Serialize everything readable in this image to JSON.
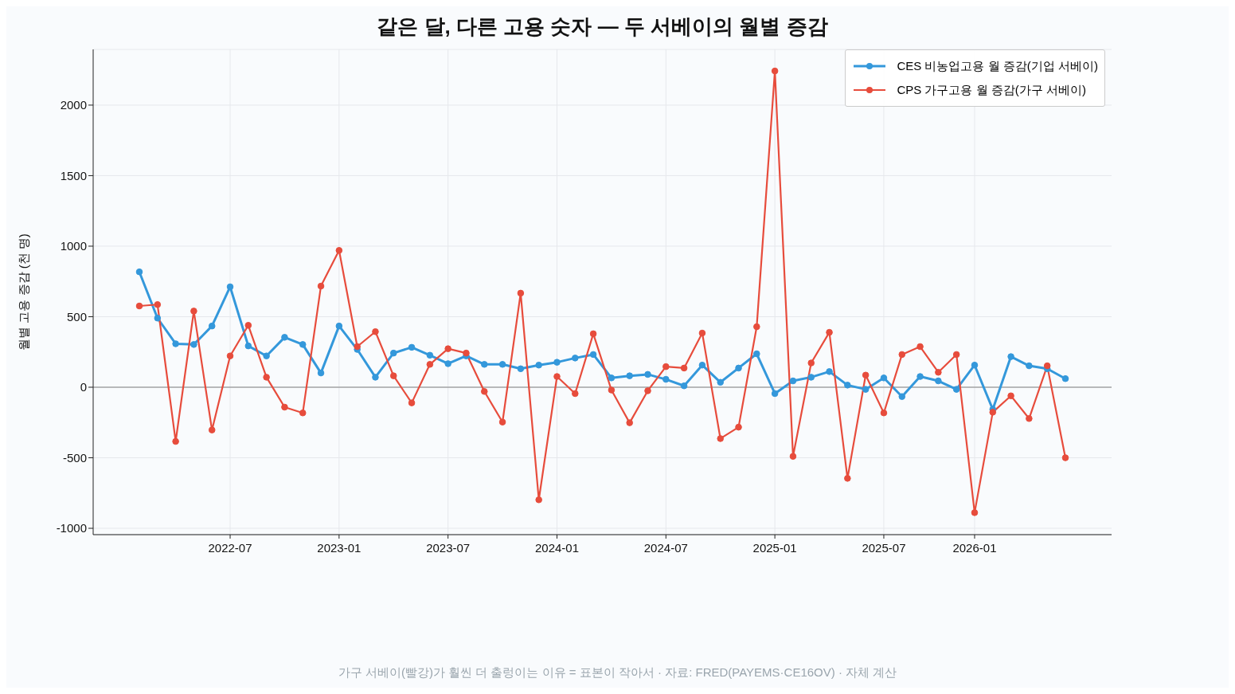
{
  "chart_data": {
    "type": "line",
    "title": "같은 달, 다른 고용 숫자 — 두 서베이의 월별 증감",
    "ylabel": "월별 고용 증감 (천 명)",
    "annotations": [
      "가구 서베이(빨강)가 훨씬 더 출렁이는 이유 = 표본이 작아서 · 자료: FRED(PAYEMS·CE16OV) · 자체 계산"
    ],
    "categories": [
      null,
      null,
      null,
      null,
      null,
      "2022-07",
      null,
      null,
      null,
      null,
      null,
      "2023-01",
      null,
      null,
      null,
      null,
      null,
      "2023-07",
      null,
      null,
      null,
      null,
      null,
      "2024-01",
      null,
      null,
      null,
      null,
      null,
      "2024-07",
      null,
      null,
      null,
      null,
      null,
      "2025-01",
      null,
      null,
      null,
      null,
      null,
      "2025-07",
      null,
      null,
      null,
      null,
      "2026-01",
      null,
      null,
      null,
      null,
      null
    ],
    "series": [
      {
        "name": "CES 비농업고용 월 증감(기업 서베이)",
        "color": "#3498db",
        "values": [
          818,
          490,
          308,
          303,
          434,
          712,
          293,
          222,
          354,
          303,
          101,
          434,
          268,
          71,
          242,
          283,
          227,
          167,
          222,
          162,
          162,
          131,
          157,
          177,
          207,
          232,
          66,
          81,
          91,
          56,
          10,
          157,
          35,
          136,
          237,
          -45,
          45,
          71,
          111,
          15,
          -15,
          66,
          -66,
          76,
          45,
          -15,
          157,
          -157,
          217,
          152,
          131,
          61
        ]
      },
      {
        "name": "CPS 가구고용 월 증감(가구 서베이)",
        "color": "#e74c3c",
        "values": [
          576,
          586,
          -384,
          540,
          -303,
          222,
          439,
          71,
          -141,
          -182,
          717,
          970,
          288,
          394,
          81,
          -111,
          162,
          273,
          242,
          -30,
          -247,
          667,
          -798,
          76,
          -45,
          379,
          -20,
          -252,
          -25,
          146,
          136,
          384,
          -364,
          -283,
          429,
          2242,
          -490,
          172,
          389,
          -646,
          86,
          -182,
          232,
          288,
          106,
          232,
          -889,
          -177,
          -61,
          -222,
          152,
          -500
        ]
      }
    ],
    "ylim": [
      -1045,
      2395
    ],
    "yticks": [
      -1000,
      -500,
      0,
      500,
      1000,
      1500,
      2000
    ],
    "ref_lines": [
      {
        "axis": "y",
        "value": 0,
        "color": "#808080"
      }
    ],
    "grid": true,
    "legend": "top right",
    "marker": "circle",
    "line_style": "solid"
  }
}
